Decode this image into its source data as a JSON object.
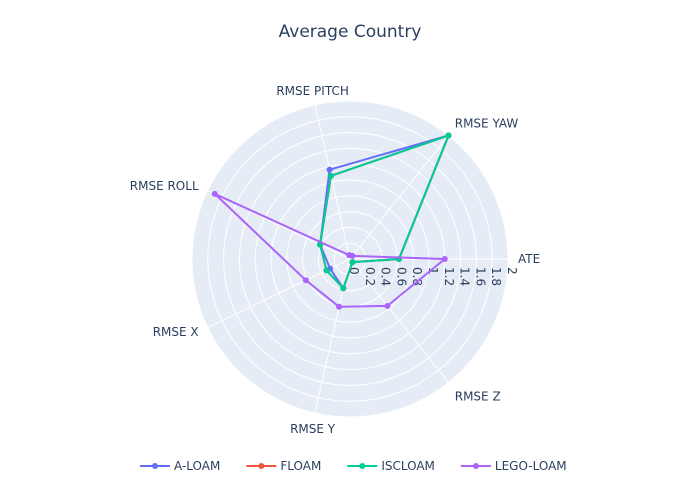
{
  "chart_data": {
    "type": "radar",
    "title": "Average Country",
    "axes": [
      "ATE",
      "RMSE YAW",
      "RMSE PITCH",
      "RMSE ROLL",
      "RMSE X",
      "RMSE Y",
      "RMSE Z"
    ],
    "radial_range": [
      0,
      2
    ],
    "radial_ticks": [
      "0",
      "0.2",
      "0.4",
      "0.6",
      "0.8",
      "1",
      "1.2",
      "1.4",
      "1.6",
      "1.8",
      "2"
    ],
    "grid": true,
    "legend_position": "bottom",
    "series": [
      {
        "name": "A-LOAM",
        "color": "#636efa",
        "values": [
          0.62,
          2.0,
          1.16,
          0.42,
          0.28,
          0.38,
          0.05
        ]
      },
      {
        "name": "FLOAM",
        "color": "#ef553b",
        "values": [
          0.62,
          2.0,
          1.08,
          0.42,
          0.33,
          0.38,
          0.05
        ]
      },
      {
        "name": "ISCLOAM",
        "color": "#00cc96",
        "values": [
          0.62,
          2.0,
          1.08,
          0.42,
          0.33,
          0.38,
          0.05
        ]
      },
      {
        "name": "LEGO-LOAM",
        "color": "#ab63fa",
        "values": [
          1.2,
          0.05,
          0.05,
          1.9,
          0.62,
          0.62,
          0.76
        ]
      }
    ]
  }
}
